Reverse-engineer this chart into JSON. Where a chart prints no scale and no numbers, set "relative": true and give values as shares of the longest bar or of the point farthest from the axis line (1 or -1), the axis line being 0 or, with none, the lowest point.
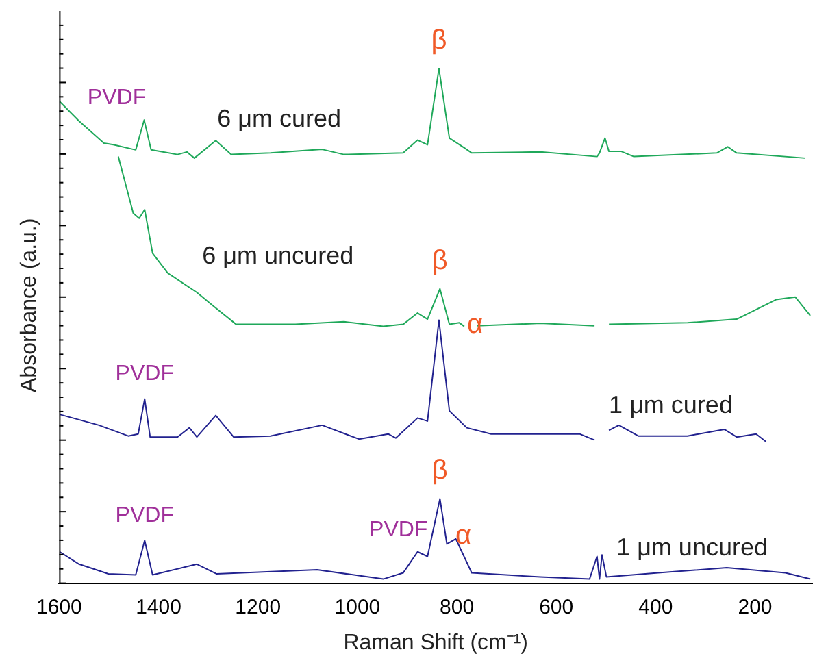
{
  "chart_data": {
    "type": "line",
    "xlabel": "Raman Shift (cm⁻¹)",
    "ylabel": "Absorbance (a.u.)",
    "relative": true,
    "xlim": [
      1600,
      85
    ],
    "xticks": [
      1600,
      1400,
      1200,
      1000,
      800,
      600,
      400,
      200
    ],
    "grid": false,
    "legend": false,
    "marker": "none",
    "line_style": "solid",
    "series": [
      {
        "name": "6 μm cured",
        "color": "#1fa85a",
        "x": [
          1599,
          1560,
          1510,
          1491,
          1446,
          1429,
          1415,
          1362,
          1343,
          1328,
          1285,
          1254,
          1175,
          1071,
          1027,
          908,
          879,
          859,
          836,
          815,
          785,
          770,
          632,
          518,
          513,
          502,
          494,
          469,
          444,
          277,
          255,
          237,
          99
        ],
        "values": [
          0.936,
          0.898,
          0.855,
          0.852,
          0.842,
          0.9,
          0.842,
          0.833,
          0.838,
          0.826,
          0.86,
          0.833,
          0.836,
          0.843,
          0.833,
          0.836,
          0.861,
          0.852,
          1.0,
          0.865,
          0.846,
          0.836,
          0.838,
          0.829,
          0.836,
          0.865,
          0.839,
          0.839,
          0.829,
          0.836,
          0.848,
          0.836,
          0.826
        ]
      },
      {
        "name": "6 μm uncured",
        "color": "#1fa85a",
        "x": [
          1481,
          1451,
          1439,
          1428,
          1412,
          1382,
          1323,
          1293,
          1244,
          1125,
          1027,
          948,
          908,
          879,
          859,
          834,
          815,
          795,
          785,
          772,
          760,
          632,
          523,
          508,
          494,
          336,
          237,
          158,
          119,
          89
        ],
        "values": [
          0.829,
          0.719,
          0.709,
          0.726,
          0.641,
          0.603,
          0.565,
          0.541,
          0.503,
          0.503,
          0.508,
          0.499,
          0.503,
          0.525,
          0.513,
          0.572,
          0.503,
          0.506,
          0.499,
          null,
          0.5,
          0.505,
          0.5,
          null,
          0.503,
          0.506,
          0.513,
          0.551,
          0.556,
          0.52
        ]
      },
      {
        "name": "1 μm cured",
        "color": "#22228f",
        "x": [
          1599,
          1520,
          1461,
          1441,
          1428,
          1417,
          1362,
          1338,
          1323,
          1285,
          1249,
          1175,
          1071,
          997,
          938,
          923,
          879,
          859,
          836,
          815,
          780,
          731,
          553,
          523,
          508,
          494,
          474,
          435,
          336,
          262,
          237,
          198,
          178
        ],
        "values": [
          0.328,
          0.307,
          0.286,
          0.29,
          0.358,
          0.284,
          0.284,
          0.302,
          0.284,
          0.326,
          0.284,
          0.286,
          0.307,
          0.28,
          0.29,
          0.282,
          0.321,
          0.315,
          0.511,
          0.335,
          0.302,
          0.29,
          0.29,
          0.278,
          null,
          0.297,
          0.307,
          0.286,
          0.286,
          0.299,
          0.284,
          0.29,
          0.275
        ]
      },
      {
        "name": "1 μm uncured",
        "color": "#22228f",
        "x": [
          1599,
          1560,
          1501,
          1446,
          1428,
          1412,
          1323,
          1283,
          1081,
          948,
          908,
          879,
          859,
          834,
          820,
          802,
          770,
          632,
          533,
          518,
          513,
          508,
          499,
          395,
          257,
          139,
          89
        ],
        "values": [
          0.061,
          0.037,
          0.018,
          0.016,
          0.083,
          0.016,
          0.037,
          0.018,
          0.026,
          0.008,
          0.02,
          0.061,
          0.052,
          0.164,
          0.076,
          0.086,
          0.02,
          0.012,
          0.008,
          0.052,
          0.008,
          0.055,
          0.012,
          0.02,
          0.03,
          0.02,
          0.008
        ]
      }
    ],
    "annotations": [
      {
        "text": "PVDF",
        "x": 1429,
        "y": 0.9
      },
      {
        "text": "β",
        "x": 836,
        "y": 1.0
      },
      {
        "text": "β",
        "x": 834,
        "y": 0.572
      },
      {
        "text": "α",
        "x": 802,
        "y": 0.506
      },
      {
        "text": "PVDF",
        "x": 1428,
        "y": 0.358
      },
      {
        "text": "PVDF",
        "x": 1428,
        "y": 0.083
      },
      {
        "text": "PVDF",
        "x": 879,
        "y": 0.061
      },
      {
        "text": "β",
        "x": 834,
        "y": 0.164
      },
      {
        "text": "α",
        "x": 820,
        "y": 0.076
      }
    ]
  }
}
